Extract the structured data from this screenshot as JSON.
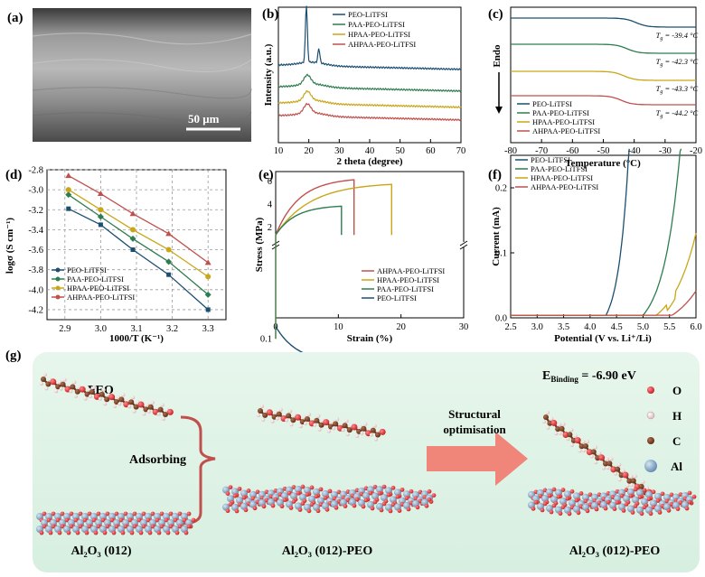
{
  "colors": {
    "peo": "#1b4f72",
    "paa": "#2e7d4f",
    "hpaa": "#c9a617",
    "ahpaa": "#c0504d",
    "arrow": "#f0857a",
    "bg_g": "#e4f4ea",
    "oxygen": "#d9262a",
    "hydrogen": "#f2dcdc",
    "carbon": "#7a3e22",
    "aluminum": "#7ea7c9"
  },
  "panels": {
    "a": "(a)",
    "b": "(b)",
    "c": "(c)",
    "d": "(d)",
    "e": "(e)",
    "f": "(f)",
    "g": "(g)"
  },
  "panel_a": {
    "scale_bar": "50 μm"
  },
  "panel_b": {
    "legend": [
      "PEO-LiTFSI",
      "PAA-PEO-LiTFSI",
      "HPAA-PEO-LiTFSI",
      "AHPAA-PEO-LiTFSI"
    ],
    "chart_data": {
      "type": "line",
      "xlabel": "2 theta (degree)",
      "ylabel": "Intensity (a.u.)",
      "xlim": [
        10,
        70
      ],
      "xticks": [
        10,
        20,
        30,
        40,
        50,
        60,
        70
      ],
      "series": [
        {
          "name": "PEO-LiTFSI",
          "peaks": [
            19.2,
            23.3
          ],
          "offset": 3
        },
        {
          "name": "PAA-PEO-LiTFSI",
          "peaks": [
            19.5
          ],
          "offset": 2
        },
        {
          "name": "HPAA-PEO-LiTFSI",
          "peaks": [
            19.5
          ],
          "offset": 1
        },
        {
          "name": "AHPAA-PEO-LiTFSI",
          "peaks": [
            19.5
          ],
          "offset": 0
        }
      ]
    }
  },
  "panel_c": {
    "y_label": "Endo",
    "legend": [
      "PEO-LiTFSI",
      "PAA-PEO-LiTFSI",
      "HPAA-PEO-LiTFSI",
      "AHPAA-PEO-LiTFSI"
    ],
    "tg_labels": [
      "T_g = -39.4 °C",
      "T_g = -42.3 °C",
      "T_g = -43.3 °C",
      "T_g = -44.2 °C"
    ],
    "chart_data": {
      "type": "line",
      "xlabel": "Temperature (°C)",
      "xlim": [
        -80,
        -20
      ],
      "xticks": [
        -80,
        -70,
        -60,
        -50,
        -40,
        -30,
        -20
      ],
      "series": [
        {
          "name": "PEO-LiTFSI",
          "tg": -39.4
        },
        {
          "name": "PAA-PEO-LiTFSI",
          "tg": -42.3
        },
        {
          "name": "HPAA-PEO-LiTFSI",
          "tg": -43.3
        },
        {
          "name": "AHPAA-PEO-LiTFSI",
          "tg": -44.2
        }
      ]
    }
  },
  "panel_d": {
    "legend": [
      "PEO-LiTFSI",
      "PAA-PEO-LiTFSI",
      "HPAA-PEO-LiTFSI",
      "AHPAA-PEO-LiTFSI"
    ],
    "chart_data": {
      "type": "line",
      "xlabel": "1000/T (K⁻¹)",
      "ylabel": "logσ (S cm⁻¹)",
      "xlim": [
        2.85,
        3.35
      ],
      "ylim": [
        -4.3,
        -2.8
      ],
      "xticks": [
        2.9,
        3.0,
        3.1,
        3.2,
        3.3
      ],
      "yticks": [
        -2.8,
        -3.0,
        -3.2,
        -3.4,
        -3.6,
        -3.8,
        -4.0,
        -4.2
      ],
      "x": [
        2.91,
        3.0,
        3.09,
        3.19,
        3.3
      ],
      "series": [
        {
          "name": "PEO-LiTFSI",
          "values": [
            -3.19,
            -3.35,
            -3.6,
            -3.85,
            -4.2
          ]
        },
        {
          "name": "PAA-PEO-LiTFSI",
          "values": [
            -3.05,
            -3.27,
            -3.49,
            -3.72,
            -4.05
          ]
        },
        {
          "name": "HPAA-PEO-LiTFSI",
          "values": [
            -3.0,
            -3.2,
            -3.4,
            -3.6,
            -3.87
          ]
        },
        {
          "name": "AHPAA-PEO-LiTFSI",
          "values": [
            -2.86,
            -3.04,
            -3.24,
            -3.44,
            -3.73
          ]
        }
      ]
    }
  },
  "panel_e": {
    "legend": [
      "AHPAA-PEO-LiTFSI",
      "HPAA-PEO-LiTFSI",
      "PAA-PEO-LiTFSI",
      "PEO-LiTFSI"
    ],
    "chart_data": {
      "type": "line",
      "xlabel": "Strain (%)",
      "ylabel": "Stress (MPa)",
      "xlim": [
        0,
        30
      ],
      "xticks": [
        0,
        10,
        20,
        30
      ],
      "yticks_upper": [
        2,
        4,
        6
      ],
      "yticks_lower": [
        0.1
      ],
      "series": [
        {
          "name": "AHPAA-PEO-LiTFSI",
          "break_strain": 12.5,
          "max_stress": 6.1
        },
        {
          "name": "HPAA-PEO-LiTFSI",
          "break_strain": 18.5,
          "max_stress": 5.7
        },
        {
          "name": "PAA-PEO-LiTFSI",
          "break_strain": 10.5,
          "max_stress": 3.8
        },
        {
          "name": "PEO-LiTFSI",
          "break_strain": 30,
          "max_stress": 0.2
        }
      ]
    }
  },
  "panel_f": {
    "legend": [
      "PEO-LiTFSI",
      "PAA-PEO-LiTFSI",
      "HPAA-PEO-LiTFSI",
      "AHPAA-PEO-LiTFSI"
    ],
    "chart_data": {
      "type": "line",
      "xlabel": "Potential (V vs. Li⁺/Li)",
      "ylabel": "Current (mA)",
      "xlim": [
        2.5,
        6.0
      ],
      "ylim": [
        0,
        0.25
      ],
      "xticks": [
        2.5,
        3.0,
        3.5,
        4.0,
        4.5,
        5.0,
        5.5,
        6.0
      ],
      "yticks": [
        0.0,
        0.1,
        0.2
      ],
      "series": [
        {
          "name": "PEO-LiTFSI",
          "onset": 4.3
        },
        {
          "name": "PAA-PEO-LiTFSI",
          "onset": 5.0
        },
        {
          "name": "HPAA-PEO-LiTFSI",
          "onset": 5.25
        },
        {
          "name": "AHPAA-PEO-LiTFSI",
          "onset": 5.55
        }
      ]
    }
  },
  "panel_g": {
    "binding": "E",
    "binding_sub": "Binding",
    "binding_value": " = -6.90 eV",
    "peo": "PEO",
    "adsorbing": "Adsorbing",
    "structural": "Structural",
    "optimisation": "optimisation",
    "label_left": "Al₂O₃ (012)",
    "label_mid": "Al₂O₃ (012)-PEO",
    "label_right": "Al₂O₃ (012)-PEO",
    "atoms": [
      "O",
      "H",
      "C",
      "Al"
    ]
  }
}
